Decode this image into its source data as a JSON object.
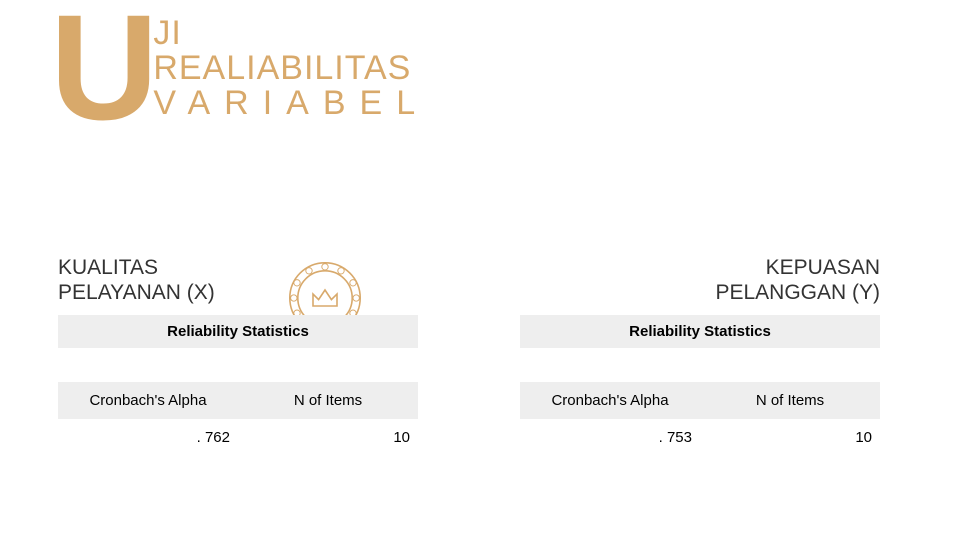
{
  "heading": {
    "drop_cap": "U",
    "line1": "JI",
    "line2": "REALIABILITAS",
    "line3": "VARIABEL"
  },
  "colors": {
    "accent": "#d8a96b",
    "text": "#333333",
    "table_header_bg": "#eeeeee",
    "table_body_bg": "#ffffff",
    "page_bg": "#ffffff"
  },
  "badge": {
    "stroke": "#d8a96b",
    "name": "award-seal-icon"
  },
  "left": {
    "title": "KUALITAS\nPELAYANAN (X)",
    "table": {
      "caption": "Reliability Statistics",
      "columns": [
        "Cronbach's Alpha",
        "N of Items"
      ],
      "row": [
        ". 762",
        "10"
      ]
    }
  },
  "right": {
    "title": "KEPUASAN\nPELANGGAN (Y)",
    "table": {
      "caption": "Reliability Statistics",
      "columns": [
        "Cronbach's Alpha",
        "N of Items"
      ],
      "row": [
        ". 753",
        "10"
      ]
    }
  }
}
